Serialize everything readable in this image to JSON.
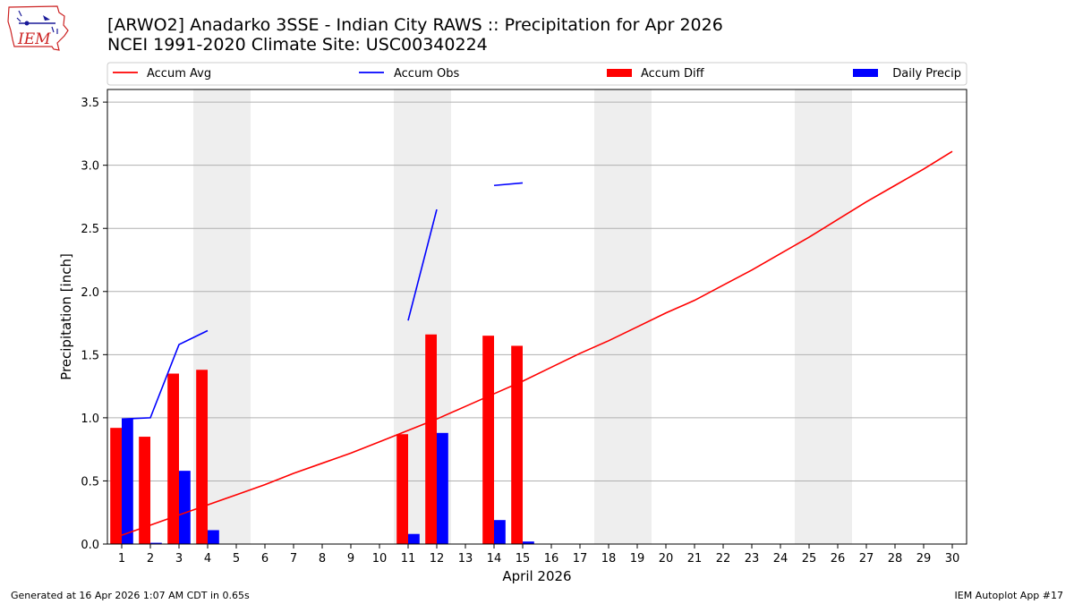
{
  "header": {
    "title_line1": "[ARWO2] Anadarko 3SSE - Indian City RAWS :: Precipitation for Apr 2026",
    "title_line2": "NCEI 1991-2020 Climate Site: USC00340224",
    "logo_text": "IEM"
  },
  "footer": {
    "generated": "Generated at 16 Apr 2026 1:07 AM CDT in 0.65s",
    "app": "IEM Autoplot App #17"
  },
  "colors": {
    "accum_avg": "#ff0000",
    "accum_obs": "#0000ff",
    "accum_diff": "#ff0000",
    "daily_precip": "#0000ff",
    "weekend": "#eeeeee",
    "grid": "#b0b0b0"
  },
  "chart_data": {
    "type": "bar",
    "title": "[ARWO2] Anadarko 3SSE - Indian City RAWS :: Precipitation for Apr 2026",
    "subtitle": "NCEI 1991-2020 Climate Site: USC00340224",
    "xlabel": "April 2026",
    "ylabel": "Precipitation [inch]",
    "xlim": [
      0.5,
      30.5
    ],
    "ylim": [
      0,
      3.6
    ],
    "yticks": [
      0.0,
      0.5,
      1.0,
      1.5,
      2.0,
      2.5,
      3.0,
      3.5
    ],
    "ytick_labels": [
      "0.0",
      "0.5",
      "1.0",
      "1.5",
      "2.0",
      "2.5",
      "3.0",
      "3.5"
    ],
    "days": [
      1,
      2,
      3,
      4,
      5,
      6,
      7,
      8,
      9,
      10,
      11,
      12,
      13,
      14,
      15,
      16,
      17,
      18,
      19,
      20,
      21,
      22,
      23,
      24,
      25,
      26,
      27,
      28,
      29,
      30
    ],
    "weekend_spans": [
      [
        4,
        5
      ],
      [
        11,
        12
      ],
      [
        18,
        19
      ],
      [
        25,
        26
      ]
    ],
    "legend": [
      "Accum Avg",
      "Accum Obs",
      "Accum Diff",
      "Daily Precip"
    ],
    "grid": "horizontal",
    "series": [
      {
        "name": "Accum Avg",
        "kind": "line",
        "x": [
          1,
          2,
          3,
          4,
          5,
          6,
          7,
          8,
          9,
          10,
          11,
          12,
          13,
          14,
          15,
          16,
          17,
          18,
          19,
          20,
          21,
          22,
          23,
          24,
          25,
          26,
          27,
          28,
          29,
          30
        ],
        "values": [
          0.07,
          0.15,
          0.23,
          0.31,
          0.39,
          0.47,
          0.56,
          0.64,
          0.72,
          0.81,
          0.9,
          0.99,
          1.09,
          1.19,
          1.29,
          1.4,
          1.51,
          1.61,
          1.72,
          1.83,
          1.93,
          2.05,
          2.17,
          2.3,
          2.43,
          2.57,
          2.71,
          2.84,
          2.97,
          3.11
        ]
      },
      {
        "name": "Accum Obs",
        "kind": "line",
        "segments": [
          {
            "x": [
              1,
              2,
              3,
              4
            ],
            "values": [
              0.99,
              1.0,
              1.58,
              1.69
            ]
          },
          {
            "x": [
              11,
              12
            ],
            "values": [
              1.77,
              2.65
            ]
          },
          {
            "x": [
              14,
              15
            ],
            "values": [
              2.84,
              2.86
            ]
          }
        ]
      },
      {
        "name": "Accum Diff",
        "kind": "bar",
        "x": [
          1,
          2,
          3,
          4,
          11,
          12,
          14,
          15
        ],
        "values": [
          0.92,
          0.85,
          1.35,
          1.38,
          0.87,
          1.66,
          1.65,
          1.57
        ]
      },
      {
        "name": "Daily Precip",
        "kind": "bar",
        "x": [
          1,
          2,
          3,
          4,
          11,
          12,
          14,
          15
        ],
        "values": [
          0.99,
          0.01,
          0.58,
          0.11,
          0.08,
          0.88,
          0.19,
          0.02
        ]
      }
    ]
  }
}
